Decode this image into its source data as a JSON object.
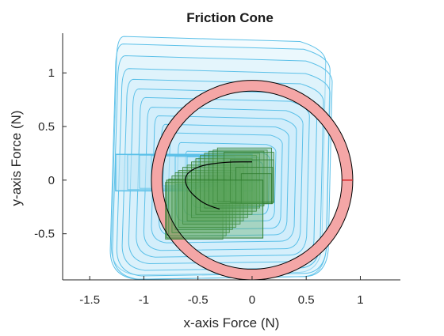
{
  "chart_data": {
    "type": "scatter",
    "title": "Friction Cone",
    "xlabel": "x-axis Force (N)",
    "ylabel": "y-axis Force (N)",
    "xlim": [
      -1.75,
      1.37
    ],
    "ylim": [
      -0.93,
      1.37
    ],
    "xticks": [
      -1.5,
      -1,
      -0.5,
      0,
      0.5,
      1
    ],
    "xtick_labels": [
      "-1.5",
      "-1",
      "-0.5",
      "0",
      "0.5",
      "1"
    ],
    "yticks": [
      -0.5,
      0,
      0.5,
      1
    ],
    "ytick_labels": [
      "-0.5",
      "0",
      "0.5",
      "1"
    ],
    "grid": false,
    "colors": {
      "blue_edge": "#5bc0e8",
      "blue_fill": "#cdeefb",
      "green_edge": "#2f7d2f",
      "green_fill": "#5aa55a",
      "ring_fill": "#f4a6a6",
      "ring_edge": "#000000",
      "marker": "#d62728",
      "trajectory": "#000000"
    },
    "friction_ring": {
      "center": [
        0,
        0
      ],
      "inner_radius": 0.83,
      "outer_radius": 0.93
    },
    "marker_segment": {
      "x": [
        0.83,
        0.93
      ],
      "y": [
        0,
        0
      ]
    },
    "blue_regions": [
      {
        "x0": -0.55,
        "x1": 0.1,
        "y0": -0.25,
        "y1": 0.19
      },
      {
        "x0": -0.63,
        "x1": 0.16,
        "y0": -0.32,
        "y1": 0.27
      },
      {
        "x0": -0.7,
        "x1": 0.22,
        "y0": -0.38,
        "y1": 0.35
      },
      {
        "x0": -0.78,
        "x1": 0.28,
        "y0": -0.45,
        "y1": 0.44
      },
      {
        "x0": -0.86,
        "x1": 0.34,
        "y0": -0.51,
        "y1": 0.52
      },
      {
        "x0": -0.93,
        "x1": 0.41,
        "y0": -0.57,
        "y1": 0.6
      },
      {
        "x0": -1.0,
        "x1": 0.47,
        "y0": -0.64,
        "y1": 0.68
      },
      {
        "x0": -1.07,
        "x1": 0.53,
        "y0": -0.7,
        "y1": 0.77
      },
      {
        "x0": -1.14,
        "x1": 0.6,
        "y0": -0.76,
        "y1": 0.85
      },
      {
        "x0": -1.2,
        "x1": 0.66,
        "y0": -0.82,
        "y1": 0.94
      },
      {
        "x0": -1.25,
        "x1": 0.72,
        "y0": -0.87,
        "y1": 1.04
      },
      {
        "x0": -1.29,
        "x1": 0.74,
        "y0": -0.9,
        "y1": 1.16
      },
      {
        "x0": -1.31,
        "x1": 0.72,
        "y0": -0.9,
        "y1": 1.27
      },
      {
        "x0": -1.3,
        "x1": 0.68,
        "y0": -0.86,
        "y1": 1.34
      }
    ],
    "blue_band": {
      "x0": -1.26,
      "x1": 0.0,
      "y0": -0.1,
      "y1": 0.24
    },
    "green_squares": [
      {
        "x": -0.8,
        "y": -0.55,
        "s": 0.53
      },
      {
        "x": -0.77,
        "y": -0.52,
        "s": 0.53
      },
      {
        "x": -0.74,
        "y": -0.49,
        "s": 0.53
      },
      {
        "x": -0.71,
        "y": -0.46,
        "s": 0.53
      },
      {
        "x": -0.68,
        "y": -0.44,
        "s": 0.53
      },
      {
        "x": -0.64,
        "y": -0.41,
        "s": 0.53
      },
      {
        "x": -0.6,
        "y": -0.38,
        "s": 0.52
      },
      {
        "x": -0.56,
        "y": -0.35,
        "s": 0.52
      },
      {
        "x": -0.52,
        "y": -0.32,
        "s": 0.52
      },
      {
        "x": -0.48,
        "y": -0.29,
        "s": 0.52
      },
      {
        "x": -0.44,
        "y": -0.26,
        "s": 0.51
      },
      {
        "x": -0.4,
        "y": -0.24,
        "s": 0.51
      },
      {
        "x": -0.36,
        "y": -0.22,
        "s": 0.5
      },
      {
        "x": -0.32,
        "y": -0.2,
        "s": 0.5
      },
      {
        "x": -0.26,
        "y": -0.2,
        "s": 0.46
      },
      {
        "x": -0.2,
        "y": -0.21,
        "s": 0.4
      },
      {
        "x": -0.15,
        "y": -0.22,
        "s": 0.34
      },
      {
        "x": -0.1,
        "y": -0.22,
        "s": 0.28
      }
    ],
    "green_bottom_box": {
      "x0": -0.79,
      "x1": 0.1,
      "y0": -0.54,
      "y1": 0.0
    },
    "trajectory": {
      "x": [
        -0.3,
        -0.4,
        -0.5,
        -0.58,
        -0.62,
        -0.61,
        -0.55,
        -0.45,
        -0.32,
        -0.18,
        0.0
      ],
      "y": [
        -0.27,
        -0.24,
        -0.18,
        -0.1,
        -0.02,
        0.05,
        0.1,
        0.14,
        0.16,
        0.17,
        0.17
      ]
    }
  }
}
